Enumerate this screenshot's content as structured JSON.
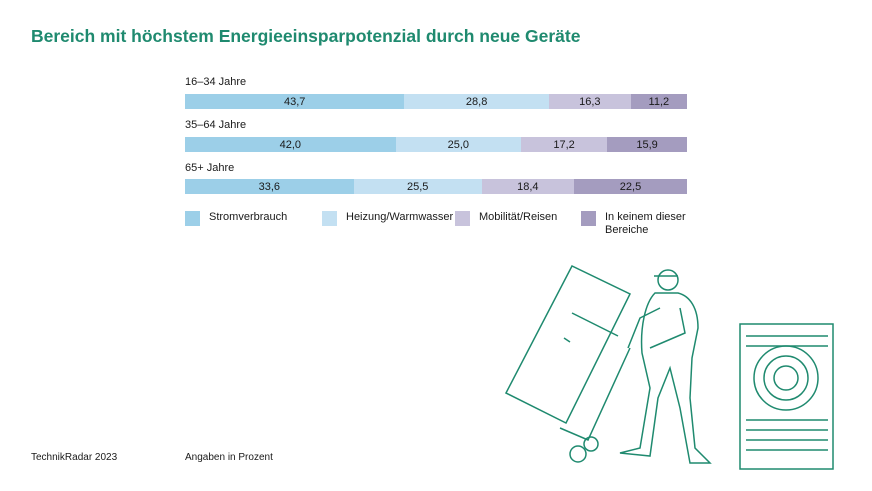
{
  "chart_data": {
    "type": "bar",
    "stacked": true,
    "orientation": "horizontal",
    "title": "Bereich mit höchstem Energieeinsparpotenzial durch neue Geräte",
    "categories": [
      "16–34 Jahre",
      "35–64 Jahre",
      "65+ Jahre"
    ],
    "series": [
      {
        "name": "Stromverbrauch",
        "values": [
          43.7,
          42.0,
          33.6
        ],
        "labels": [
          "43,7",
          "42,0",
          "33,6"
        ],
        "color": "#9ccfe8"
      },
      {
        "name": "Heizung/Warmwasser",
        "values": [
          28.8,
          25.0,
          25.5
        ],
        "labels": [
          "28,8",
          "25,0",
          "25,5"
        ],
        "color": "#c3e0f2"
      },
      {
        "name": "Mobilität/Reisen",
        "values": [
          16.3,
          17.2,
          18.4
        ],
        "labels": [
          "16,3",
          "17,2",
          "18,4"
        ],
        "color": "#c8c3dc"
      },
      {
        "name": "In keinem dieser Bereiche",
        "values": [
          11.2,
          15.9,
          22.5
        ],
        "labels": [
          "11,2",
          "15,9",
          "22,5"
        ],
        "color": "#a49cbf"
      }
    ],
    "legend": "bottom",
    "grid": false
  },
  "footer": {
    "source": "TechnikRadar 2023",
    "unit_note": "Angaben in Prozent"
  },
  "colors": {
    "title": "#1f8a6f",
    "illustration": "#1f8a6f"
  }
}
